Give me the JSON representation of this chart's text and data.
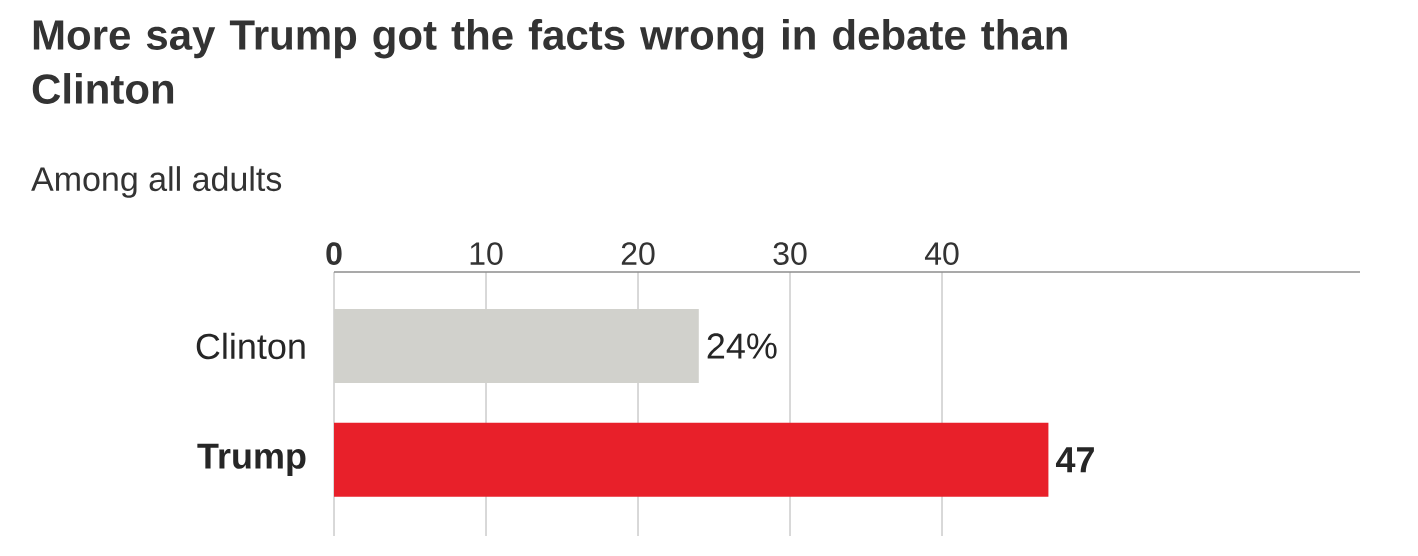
{
  "chart_data": {
    "type": "bar",
    "orientation": "horizontal",
    "title": "More say Trump got the facts wrong in debate than Clinton",
    "subtitle": "Among all adults",
    "categories": [
      "Clinton",
      "**Trump**"
    ],
    "values": [
      24,
      47
    ],
    "colors": [
      "#d1d1cc",
      "#e8202a"
    ],
    "value_labels": [
      "24%",
      "**47**"
    ],
    "xlim": [
      0,
      67.5
    ],
    "xticks": [
      {
        "value": 0,
        "label": "**0**"
      },
      10,
      20,
      30,
      40
    ],
    "grid": "x"
  }
}
